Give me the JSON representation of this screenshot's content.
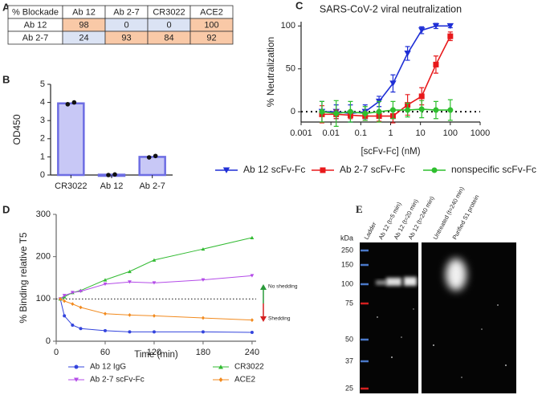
{
  "panel_labels": [
    "A",
    "B",
    "C",
    "D",
    "E"
  ],
  "table": {
    "header": [
      "% Blockade",
      "Ab 12",
      "Ab 2-7",
      "CR3022",
      "ACE2"
    ],
    "rows": [
      [
        "Ab 12",
        98,
        0,
        0,
        100
      ],
      [
        "Ab 2-7",
        24,
        93,
        84,
        92
      ]
    ],
    "colors": [
      [
        "#f9c9a7",
        "#dbe3f4",
        "#dbe3f4",
        "#f9c9a7"
      ],
      [
        "#dbe3f4",
        "#f9c9a7",
        "#f9c9a7",
        "#f9c9a7"
      ]
    ]
  },
  "chart_data": [
    {
      "type": "bar",
      "ylabel": "OD450",
      "categories": [
        "CR3022",
        "Ab 12",
        "Ab 2-7"
      ],
      "values": [
        3.95,
        0.02,
        1.0
      ],
      "replicates": [
        [
          3.9,
          4.0
        ],
        [
          0.0,
          0.03
        ],
        [
          0.97,
          1.05
        ]
      ],
      "color": "#c8c8f6",
      "edge_color": "#6d6de3",
      "ylim": [
        0,
        5
      ],
      "yticks": [
        0,
        1,
        2,
        3,
        4,
        5
      ]
    },
    {
      "type": "line",
      "title": "SARS-CoV-2 viral neutralization",
      "xlabel": "[scFv-Fc] (nM)",
      "ylabel": "% Neutralization",
      "log_x": true,
      "xlim": [
        0.001,
        1000
      ],
      "xticks": [
        0.001,
        0.01,
        0.1,
        1,
        10,
        100,
        1000
      ],
      "ylim": [
        -12,
        105
      ],
      "yticks": [
        0,
        50,
        100
      ],
      "reference_line": 0,
      "x": [
        0.005,
        0.015,
        0.045,
        0.14,
        0.41,
        1.2,
        3.7,
        11,
        33,
        100
      ],
      "series": [
        {
          "name": "Ab 12 scFv-Fc",
          "color": "#1f2fd6",
          "marker": "triangle-down",
          "values": [
            0,
            0,
            -2,
            0,
            12,
            33,
            68,
            95,
            100,
            100
          ],
          "errors": [
            12,
            8,
            10,
            8,
            6,
            10,
            8,
            4,
            3,
            2
          ]
        },
        {
          "name": "Ab 2-7 scFv-Fc",
          "color": "#e8191b",
          "marker": "square",
          "values": [
            -3,
            -3,
            -4,
            -5,
            -5,
            -5,
            8,
            18,
            55,
            88
          ],
          "errors": [
            10,
            5,
            4,
            5,
            6,
            8,
            12,
            10,
            10,
            5
          ]
        },
        {
          "name": "nonspecific scFv-Fc",
          "color": "#2fbf2f",
          "marker": "circle",
          "values": [
            0,
            -2,
            0,
            -2,
            0,
            2,
            2,
            3,
            2,
            2
          ],
          "errors": [
            12,
            15,
            12,
            8,
            12,
            10,
            8,
            10,
            10,
            12
          ]
        }
      ],
      "legend": "bottom"
    },
    {
      "type": "line",
      "xlabel": "Time (min)",
      "ylabel": "% Binding relative T5",
      "xlim": [
        0,
        245
      ],
      "xticks": [
        0,
        60,
        120,
        180,
        240
      ],
      "ylim": [
        0,
        300
      ],
      "yticks": [
        0,
        100,
        200,
        300
      ],
      "reference_line": 100,
      "x": [
        5,
        10,
        20,
        30,
        60,
        90,
        120,
        180,
        240
      ],
      "series": [
        {
          "name": "Ab 12 IgG",
          "color": "#3344dd",
          "marker": "circle",
          "values": [
            100,
            60,
            38,
            30,
            25,
            22,
            22,
            22,
            21
          ]
        },
        {
          "name": "CR3022",
          "color": "#33bb33",
          "marker": "triangle-up",
          "values": [
            100,
            105,
            115,
            120,
            145,
            165,
            192,
            218,
            245
          ]
        },
        {
          "name": "Ab 2-7 scFv-Fc",
          "color": "#b44ce8",
          "marker": "triangle-down",
          "values": [
            100,
            108,
            115,
            118,
            135,
            140,
            138,
            145,
            155
          ]
        },
        {
          "name": "ACE2",
          "color": "#f28a1e",
          "marker": "diamond",
          "values": [
            100,
            95,
            88,
            80,
            65,
            62,
            60,
            55,
            50
          ]
        }
      ],
      "annotations": [
        "No shedding",
        "Shedding"
      ],
      "legend": "bottom"
    }
  ],
  "gel": {
    "unit": "kDa",
    "markers": [
      250,
      150,
      100,
      75,
      50,
      37,
      25
    ],
    "marker_colors": [
      "#4a78c8",
      "#4a78c8",
      "#4a78c8",
      "#d42020",
      "#4a78c8",
      "#4a78c8",
      "#d42020"
    ],
    "lanes": [
      "Ladder",
      "Ab 12 (t=5 min)",
      "Ab 12 (t=20 min)",
      "Ab 12 (t=240 min)",
      "Untreated (t=240 min)",
      "Purified S1 protein"
    ]
  }
}
